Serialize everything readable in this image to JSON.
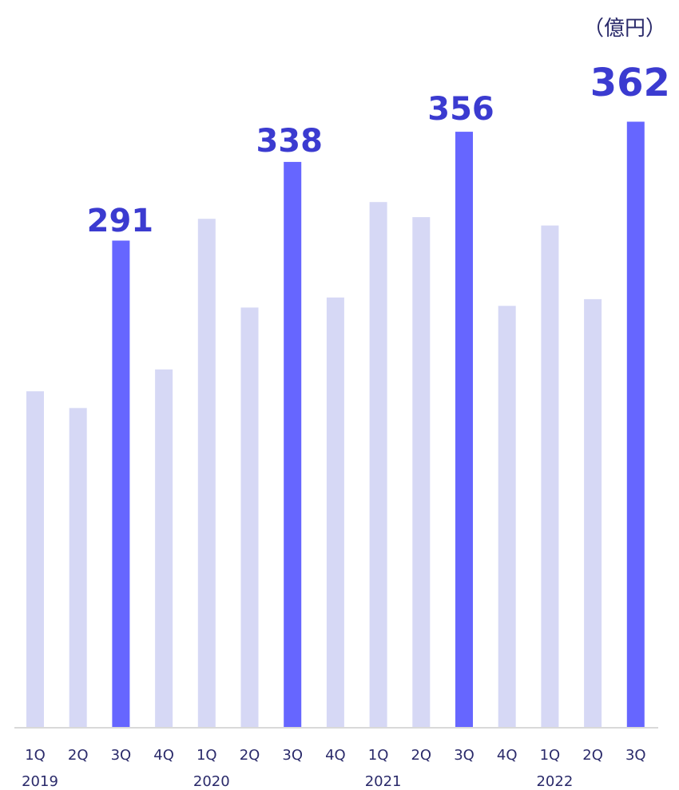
{
  "chart_data": {
    "type": "bar",
    "unit_label": "（億円）",
    "categories": [
      "1Q",
      "2Q",
      "3Q",
      "4Q",
      "1Q",
      "2Q",
      "3Q",
      "4Q",
      "1Q",
      "2Q",
      "3Q",
      "4Q",
      "1Q",
      "2Q",
      "3Q"
    ],
    "years": [
      {
        "label": "2019",
        "start_index": 0
      },
      {
        "label": "2020",
        "start_index": 4
      },
      {
        "label": "2021",
        "start_index": 8
      },
      {
        "label": "2022",
        "start_index": 12
      }
    ],
    "values": [
      201,
      191,
      291,
      214,
      304,
      251,
      338,
      257,
      314,
      305,
      356,
      252,
      300,
      256,
      362
    ],
    "highlighted": [
      false,
      false,
      true,
      false,
      false,
      false,
      true,
      false,
      false,
      false,
      true,
      false,
      false,
      false,
      true
    ],
    "data_labels": [
      "",
      "",
      "291",
      "",
      "",
      "",
      "338",
      "",
      "",
      "",
      "356",
      "",
      "",
      "",
      "362"
    ],
    "ylim": [
      0,
      362
    ],
    "grid": false,
    "colors": {
      "bar": "#d6d8f5",
      "highlight": "#6666ff",
      "label": "#3b3bd0",
      "axis": "#d9d9d9",
      "text": "#2a2a6a"
    }
  }
}
